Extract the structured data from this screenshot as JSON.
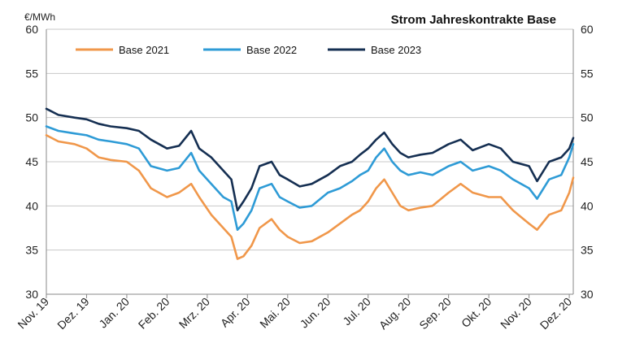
{
  "chart_data": {
    "type": "line",
    "title": "Strom Jahreskontrakte Base",
    "ylabel": "€/MWh",
    "ylim": [
      30,
      60
    ],
    "yticks": [
      30,
      35,
      40,
      45,
      50,
      55,
      60
    ],
    "xlim": [
      0,
      13.1
    ],
    "x_tick_labels": [
      "Nov. 19",
      "Dez. 19",
      "Jan. 20",
      "Feb. 20",
      "Mrz. 20",
      "Apr. 20",
      "Mai. 20",
      "Jun. 20",
      "Jul. 20",
      "Aug. 20",
      "Sep. 20",
      "Okt. 20",
      "Nov. 20",
      "Dez. 20"
    ],
    "grid": true,
    "legend_position": "top",
    "x": [
      0,
      0.3,
      0.7,
      1.0,
      1.3,
      1.6,
      2.0,
      2.3,
      2.6,
      3.0,
      3.3,
      3.6,
      3.8,
      4.1,
      4.4,
      4.6,
      4.75,
      4.9,
      5.1,
      5.3,
      5.6,
      5.8,
      6.0,
      6.3,
      6.6,
      7.0,
      7.3,
      7.6,
      7.8,
      8.0,
      8.2,
      8.4,
      8.6,
      8.8,
      9.0,
      9.3,
      9.6,
      10.0,
      10.3,
      10.6,
      11.0,
      11.3,
      11.6,
      12.0,
      12.2,
      12.5,
      12.8,
      13.0,
      13.1
    ],
    "series": [
      {
        "name": "Base 2021",
        "color": "#f0974a",
        "values": [
          48.0,
          47.3,
          47.0,
          46.5,
          45.5,
          45.2,
          45.0,
          44.0,
          42.0,
          41.0,
          41.5,
          42.5,
          41.0,
          39.0,
          37.5,
          36.5,
          34.0,
          34.3,
          35.5,
          37.5,
          38.5,
          37.3,
          36.5,
          35.8,
          36.0,
          37.0,
          38.0,
          39.0,
          39.5,
          40.5,
          42.0,
          43.0,
          41.5,
          40.0,
          39.5,
          39.8,
          40.0,
          41.5,
          42.5,
          41.5,
          41.0,
          41.0,
          39.5,
          38.0,
          37.3,
          39.0,
          39.5,
          41.5,
          43.2
        ]
      },
      {
        "name": "Base 2022",
        "color": "#2e9bd6",
        "values": [
          49.0,
          48.5,
          48.2,
          48.0,
          47.5,
          47.3,
          47.0,
          46.5,
          44.5,
          44.0,
          44.3,
          46.0,
          44.0,
          42.5,
          41.0,
          40.5,
          37.3,
          38.0,
          39.5,
          42.0,
          42.5,
          41.0,
          40.5,
          39.8,
          40.0,
          41.5,
          42.0,
          42.8,
          43.5,
          44.0,
          45.5,
          46.5,
          45.0,
          44.0,
          43.5,
          43.8,
          43.5,
          44.5,
          45.0,
          44.0,
          44.5,
          44.0,
          43.0,
          42.0,
          40.8,
          43.0,
          43.5,
          45.5,
          47.0
        ]
      },
      {
        "name": "Base 2023",
        "color": "#152f52",
        "values": [
          51.0,
          50.3,
          50.0,
          49.8,
          49.3,
          49.0,
          48.8,
          48.5,
          47.5,
          46.5,
          46.8,
          48.5,
          46.5,
          45.5,
          44.0,
          43.0,
          39.5,
          40.5,
          42.0,
          44.5,
          45.0,
          43.5,
          43.0,
          42.2,
          42.5,
          43.5,
          44.5,
          45.0,
          45.8,
          46.5,
          47.5,
          48.3,
          47.0,
          46.0,
          45.5,
          45.8,
          46.0,
          47.0,
          47.5,
          46.3,
          47.0,
          46.5,
          45.0,
          44.5,
          42.8,
          45.0,
          45.5,
          46.5,
          47.7
        ]
      }
    ]
  }
}
